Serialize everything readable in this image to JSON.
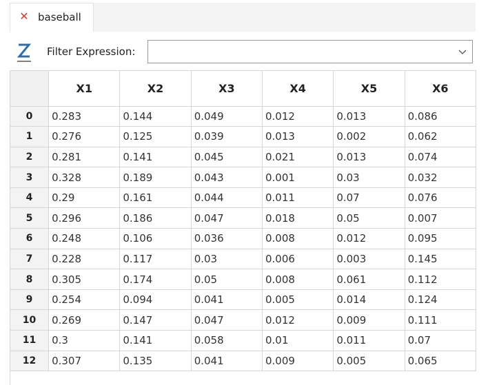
{
  "tab": {
    "label": "baseball",
    "close_icon": "close-icon"
  },
  "filter": {
    "label": "Filter Expression:",
    "value": "",
    "placeholder": "",
    "icon": "filter-z-icon",
    "dropdown_icon": "chevron-down-icon"
  },
  "table": {
    "columns": [
      "X1",
      "X2",
      "X3",
      "X4",
      "X5",
      "X6"
    ],
    "rows": [
      {
        "index": "0",
        "values": [
          "0.283",
          "0.144",
          "0.049",
          "0.012",
          "0.013",
          "0.086"
        ]
      },
      {
        "index": "1",
        "values": [
          "0.276",
          "0.125",
          "0.039",
          "0.013",
          "0.002",
          "0.062"
        ]
      },
      {
        "index": "2",
        "values": [
          "0.281",
          "0.141",
          "0.045",
          "0.021",
          "0.013",
          "0.074"
        ]
      },
      {
        "index": "3",
        "values": [
          "0.328",
          "0.189",
          "0.043",
          "0.001",
          "0.03",
          "0.032"
        ]
      },
      {
        "index": "4",
        "values": [
          "0.29",
          "0.161",
          "0.044",
          "0.011",
          "0.07",
          "0.076"
        ]
      },
      {
        "index": "5",
        "values": [
          "0.296",
          "0.186",
          "0.047",
          "0.018",
          "0.05",
          "0.007"
        ]
      },
      {
        "index": "6",
        "values": [
          "0.248",
          "0.106",
          "0.036",
          "0.008",
          "0.012",
          "0.095"
        ]
      },
      {
        "index": "7",
        "values": [
          "0.228",
          "0.117",
          "0.03",
          "0.006",
          "0.003",
          "0.145"
        ]
      },
      {
        "index": "8",
        "values": [
          "0.305",
          "0.174",
          "0.05",
          "0.008",
          "0.061",
          "0.112"
        ]
      },
      {
        "index": "9",
        "values": [
          "0.254",
          "0.094",
          "0.041",
          "0.005",
          "0.014",
          "0.124"
        ]
      },
      {
        "index": "10",
        "values": [
          "0.269",
          "0.147",
          "0.047",
          "0.012",
          "0.009",
          "0.111"
        ]
      },
      {
        "index": "11",
        "values": [
          "0.3",
          "0.141",
          "0.058",
          "0.01",
          "0.011",
          "0.07"
        ]
      },
      {
        "index": "12",
        "values": [
          "0.307",
          "0.135",
          "0.041",
          "0.009",
          "0.005",
          "0.065"
        ]
      }
    ]
  },
  "colors": {
    "close_red": "#d23a2a",
    "grid_line": "#d6d6d6",
    "header_bg": "#f3f3f3"
  }
}
